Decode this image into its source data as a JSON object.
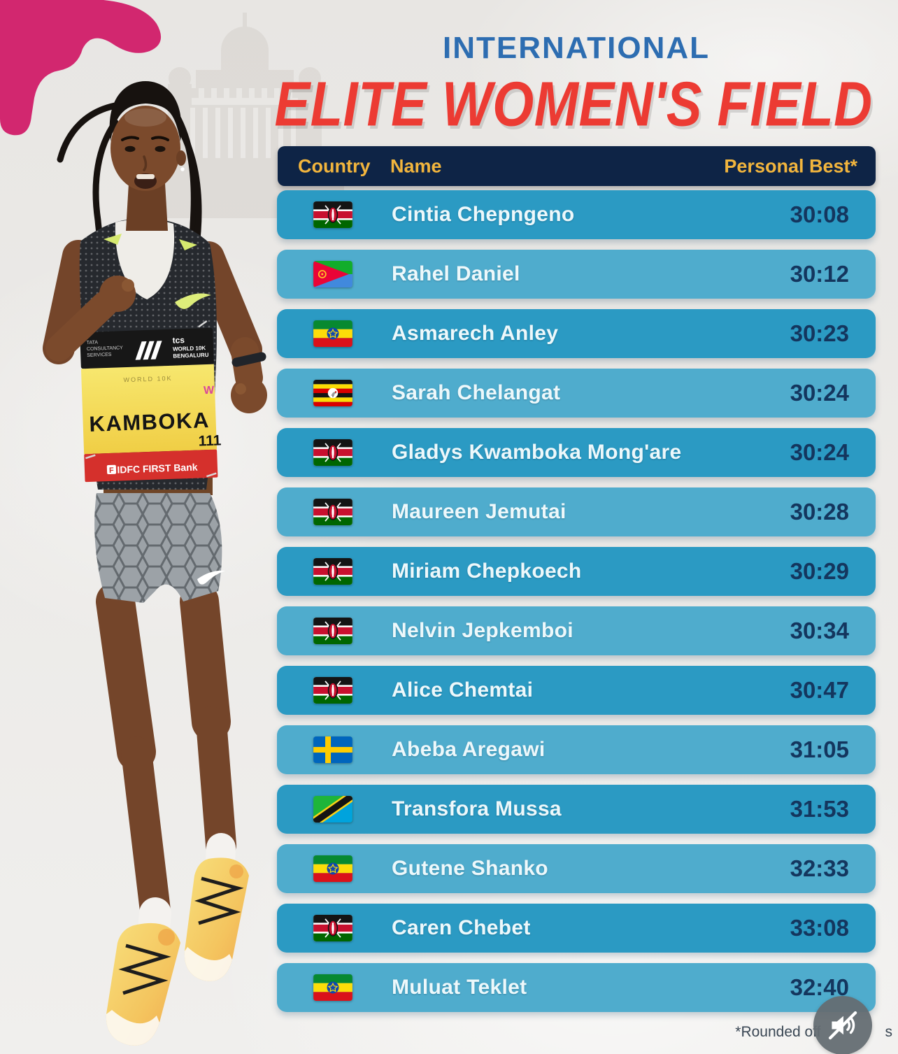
{
  "page": {
    "kicker": "INTERNATIONAL",
    "title": "ELITE WOMEN'S FIELD"
  },
  "table": {
    "columns": {
      "country": "Country",
      "name": "Name",
      "pb": "Personal Best*"
    },
    "rows": [
      {
        "flag": "kenya",
        "name": "Cintia Chepngeno",
        "pb": "30:08"
      },
      {
        "flag": "eritrea",
        "name": "Rahel Daniel",
        "pb": "30:12"
      },
      {
        "flag": "ethiopia",
        "name": "Asmarech Anley",
        "pb": "30:23"
      },
      {
        "flag": "uganda",
        "name": "Sarah Chelangat",
        "pb": "30:24"
      },
      {
        "flag": "kenya",
        "name": "Gladys Kwamboka Mong'are",
        "pb": "30:24"
      },
      {
        "flag": "kenya",
        "name": "Maureen Jemutai",
        "pb": "30:28"
      },
      {
        "flag": "kenya",
        "name": "Miriam Chepkoech",
        "pb": "30:29"
      },
      {
        "flag": "kenya",
        "name": "Nelvin Jepkemboi",
        "pb": "30:34"
      },
      {
        "flag": "kenya",
        "name": "Alice Chemtai",
        "pb": "30:47"
      },
      {
        "flag": "sweden",
        "name": "Abeba Aregawi",
        "pb": "31:05"
      },
      {
        "flag": "tanzania",
        "name": "Transfora Mussa",
        "pb": "31:53"
      },
      {
        "flag": "ethiopia",
        "name": "Gutene Shanko",
        "pb": "32:33"
      },
      {
        "flag": "kenya",
        "name": "Caren Chebet",
        "pb": "33:08"
      },
      {
        "flag": "ethiopia",
        "name": "Muluat Teklet",
        "pb": "32:40"
      }
    ]
  },
  "footnote": {
    "prefix": "*Rounded off",
    "suffix": "s"
  },
  "bib": {
    "tcs_lines": [
      "TATA",
      "CONSULTANCY",
      "SERVICES"
    ],
    "event_lines": [
      "tcs",
      "WORLD 10K",
      "BENGALURU"
    ],
    "watermark": "WORLD 10K",
    "w_mark": "W",
    "athlete": "KAMBOKA",
    "number": "111",
    "sponsor": "IDFC FIRST Bank",
    "sponsor_mark": "F"
  },
  "audio_control": {
    "icon": "muted-speaker-icon"
  },
  "colors": {
    "row_dark": "#2B9AC3",
    "row_light": "#4FACCD",
    "header_bg": "#0E2446",
    "gold": "#F2B53D",
    "title_red": "#EC3B33",
    "kicker_blue": "#2D6DB1",
    "time_navy": "#14365E",
    "pink_blob": "#D2276F"
  }
}
